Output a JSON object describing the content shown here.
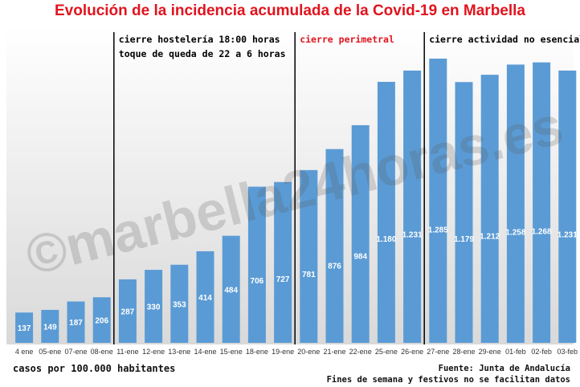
{
  "chart_data": {
    "type": "bar",
    "title": "Evolución de la incidencia acumulada de la Covid-19 en Marbella",
    "categories": [
      "4 ene",
      "05-ene",
      "07-ene",
      "08-ene",
      "11-ene",
      "12-ene",
      "13-ene",
      "14-ene",
      "15-ene",
      "18-ene",
      "19-ene",
      "20-ene",
      "21-ene",
      "22-ene",
      "25-ene",
      "26-ene",
      "27-ene",
      "28-ene",
      "29-ene",
      "01-feb",
      "02-feb",
      "03-feb"
    ],
    "values": [
      137,
      149,
      187,
      206,
      287,
      330,
      353,
      414,
      484,
      706,
      727,
      781,
      876,
      984,
      1180,
      1231,
      1285,
      1179,
      1212,
      1258,
      1268,
      1231
    ],
    "data_labels": [
      "137",
      "149",
      "187",
      "206",
      "287",
      "330",
      "353",
      "414",
      "484",
      "706",
      "727",
      "781",
      "876",
      "984",
      "1.180",
      "1.231",
      "1.285",
      "1.179",
      "1.212",
      "1.258",
      "1.268",
      "1.231"
    ],
    "ylim": [
      0,
      1350
    ],
    "bar_color": "#5b9bd5",
    "annotations": [
      {
        "after_index": 3,
        "lines": [
          "cierre hostelería 18:00 horas",
          "toque de queda de 22 a 6 horas"
        ],
        "color": "#000000"
      },
      {
        "after_index": 10,
        "lines": [
          "cierre perimetral"
        ],
        "color": "#e0141e"
      },
      {
        "after_index": 15,
        "lines": [
          "cierre actividad no esencial"
        ],
        "color": "#000000"
      }
    ],
    "ylabel": "casos por 100.000 habitantes"
  },
  "watermark": "©marbella24horas.es",
  "footer": {
    "units": "casos por 100.000 habitantes",
    "source": "Fuente: Junta de Andalucía",
    "note": "Fines de semana y festivos no se facilitan datos"
  }
}
